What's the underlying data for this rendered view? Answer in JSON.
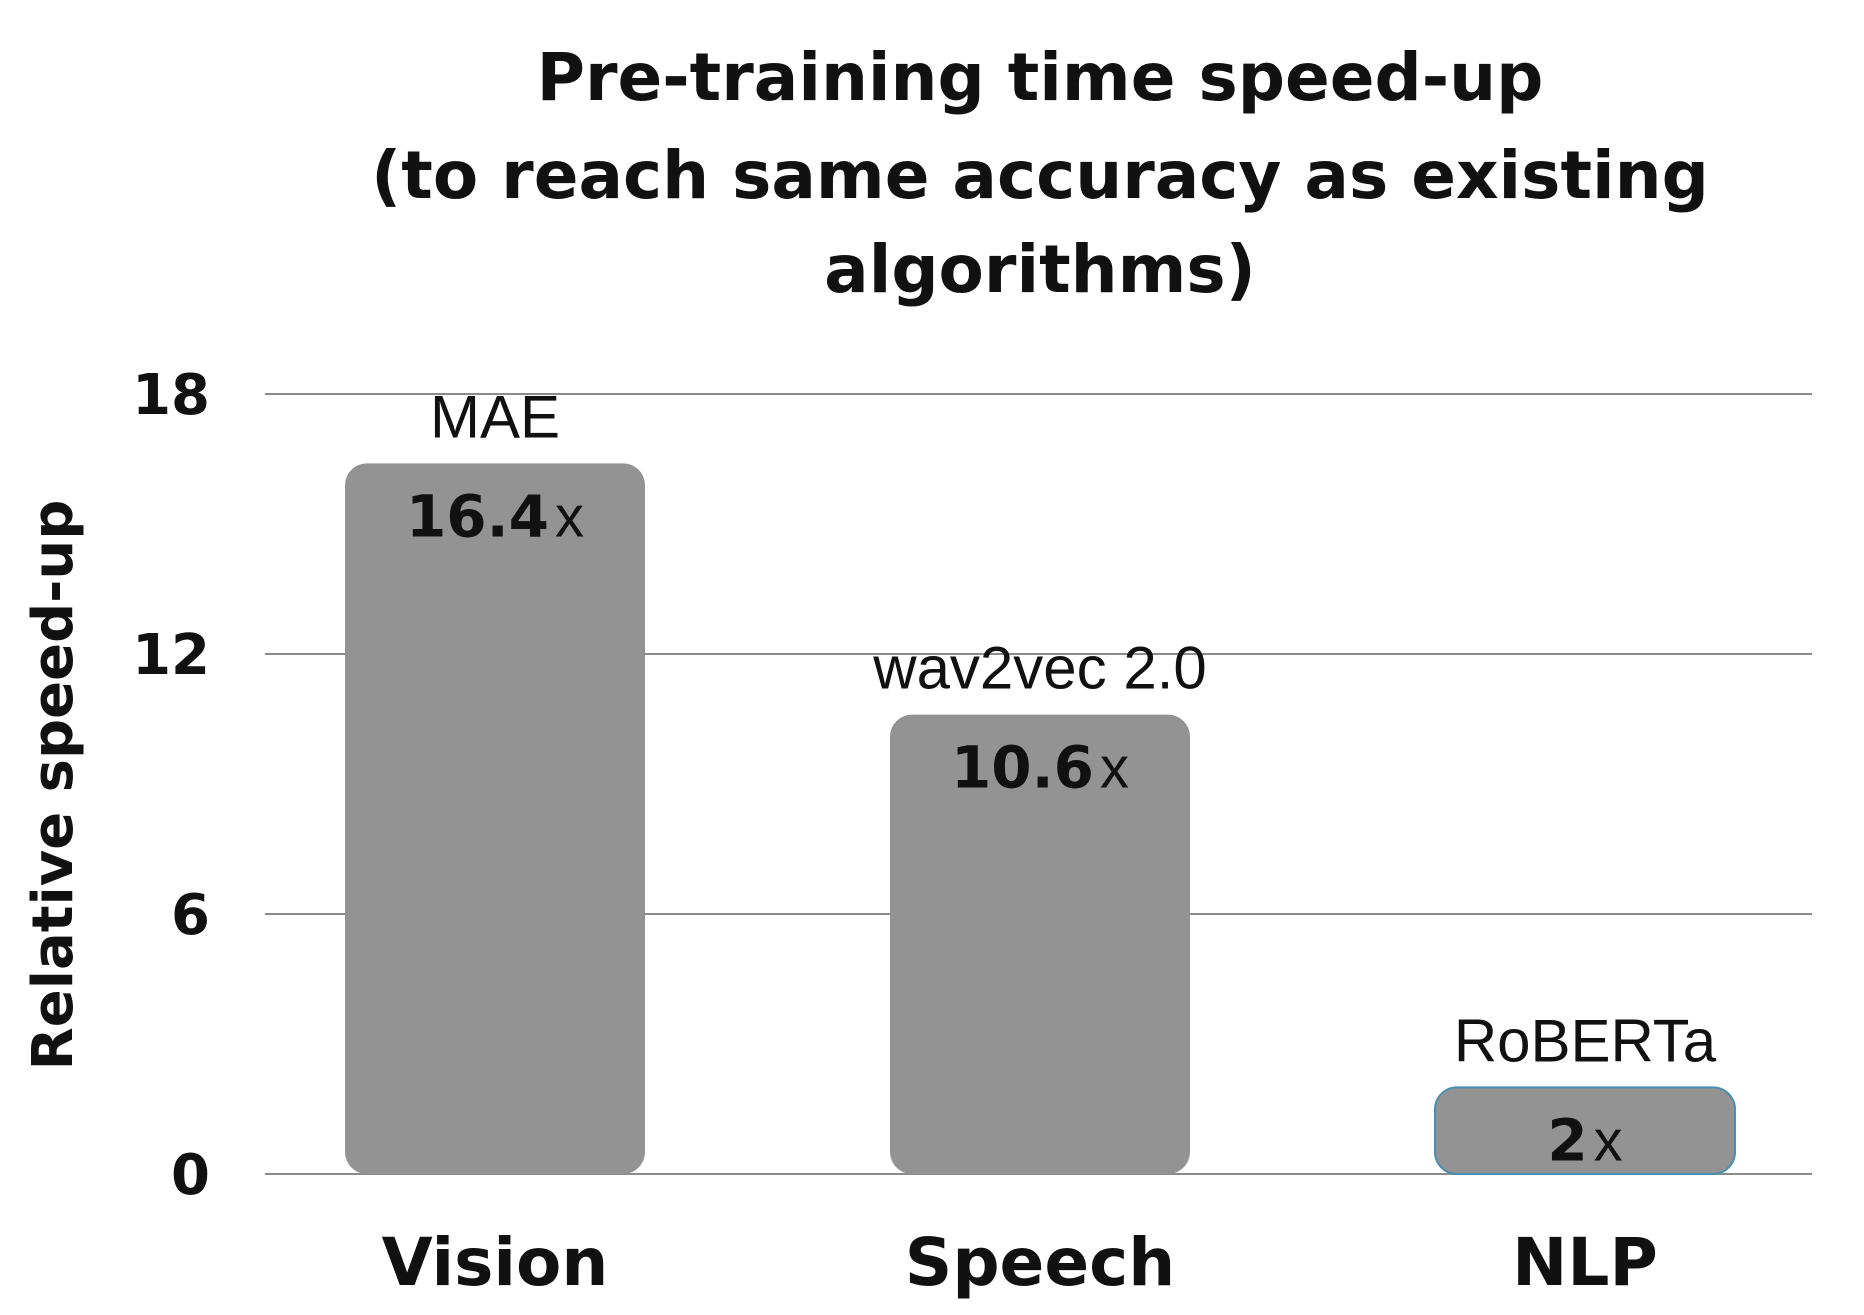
{
  "chart_data": {
    "type": "bar",
    "title_lines": [
      "Pre-training time speed-up",
      "(to reach same accuracy as existing",
      "algorithms)"
    ],
    "xlabel": "",
    "ylabel": "Relative speed-up",
    "ylim": [
      0,
      18
    ],
    "yticks": [
      "0",
      "6",
      "12",
      "18"
    ],
    "ytick_values": [
      0,
      6,
      12,
      18
    ],
    "grid": true,
    "categories": [
      "Vision",
      "Speech",
      "NLP"
    ],
    "values": [
      16.4,
      10.6,
      2
    ],
    "value_labels": [
      "16.4",
      "10.6",
      "2"
    ],
    "value_suffix": "x",
    "model_labels": [
      "MAE",
      "wav2vec 2.0",
      "RoBERTa"
    ],
    "bar_color": "#939393",
    "last_bar_outline_color": "#4a8fb0"
  }
}
